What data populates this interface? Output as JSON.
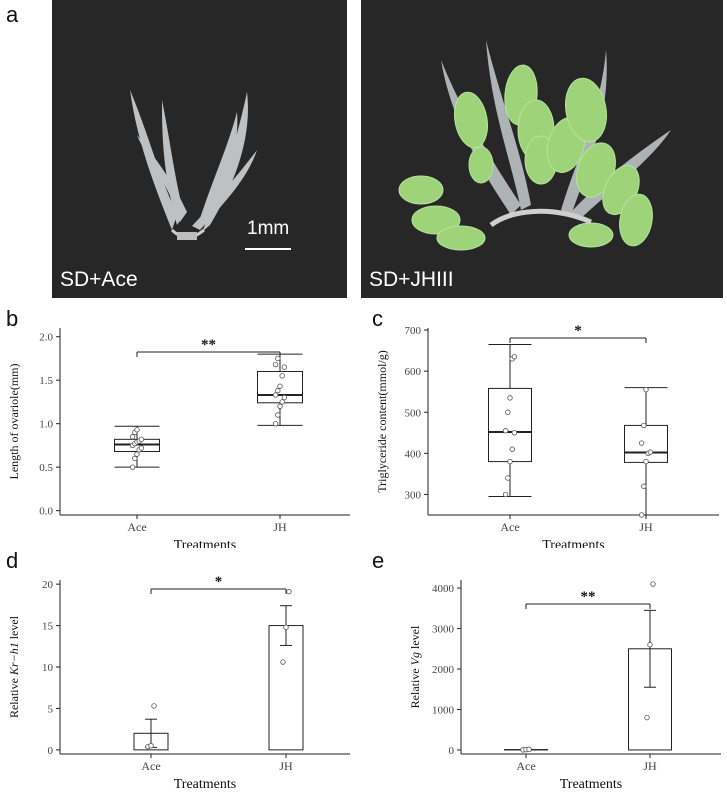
{
  "figure": {
    "panel_letters": [
      "a",
      "b",
      "c",
      "d",
      "e"
    ],
    "photos": [
      {
        "label": "SD+Ace"
      },
      {
        "label": "SD+JHIII"
      }
    ],
    "scale_bar_label": "1mm"
  },
  "chart_data": [
    {
      "panel": "b",
      "type": "box",
      "categories": [
        "Ace",
        "JH"
      ],
      "ylabel": "Length of ovariole(mm)",
      "xlabel": "Treatments",
      "ylim": [
        -0.05,
        2.1
      ],
      "yticks": [
        "0.0",
        "0.5",
        "1.0",
        "1.5",
        "2.0"
      ],
      "ytick_values": [
        0.0,
        0.5,
        1.0,
        1.5,
        2.0
      ],
      "boxes": [
        {
          "category": "Ace",
          "min": 0.5,
          "q1": 0.68,
          "median": 0.76,
          "q3": 0.82,
          "max": 0.97,
          "points": [
            0.5,
            0.6,
            0.65,
            0.7,
            0.72,
            0.75,
            0.77,
            0.79,
            0.8,
            0.82,
            0.85,
            0.9,
            0.93
          ]
        },
        {
          "category": "JH",
          "min": 0.98,
          "q1": 1.24,
          "median": 1.33,
          "q3": 1.6,
          "max": 1.8,
          "points": [
            1.0,
            1.1,
            1.2,
            1.25,
            1.3,
            1.33,
            1.38,
            1.43,
            1.55,
            1.65,
            1.68,
            1.75
          ]
        }
      ],
      "significance": "**"
    },
    {
      "panel": "c",
      "type": "box",
      "categories": [
        "Ace",
        "JH"
      ],
      "ylabel": "Triglyceride content(mmol/g)",
      "xlabel": "Treatments",
      "ylim": [
        250,
        705
      ],
      "yticks": [
        "300",
        "400",
        "500",
        "600",
        "700"
      ],
      "ytick_values": [
        300,
        400,
        500,
        600,
        700
      ],
      "boxes": [
        {
          "category": "Ace",
          "min": 295,
          "q1": 380,
          "median": 452,
          "q3": 558,
          "max": 665,
          "points": [
            300,
            340,
            380,
            410,
            450,
            455,
            500,
            535,
            630,
            635
          ]
        },
        {
          "category": "JH",
          "min": 250,
          "q1": 378,
          "median": 402,
          "q3": 468,
          "max": 560,
          "points": [
            250,
            320,
            380,
            400,
            403,
            425,
            468,
            555
          ]
        }
      ],
      "significance": "*"
    },
    {
      "panel": "d",
      "type": "bar",
      "categories": [
        "Ace",
        "JH"
      ],
      "ylabel": "Relative Kr−h1 level",
      "ylabel_prefix": "Relative ",
      "ylabel_italic": "Kr−h1",
      "ylabel_suffix": " level",
      "xlabel": "Treatments",
      "ylim": [
        -0.5,
        20.5
      ],
      "yticks": [
        "0",
        "5",
        "10",
        "15",
        "20"
      ],
      "ytick_values": [
        0,
        5,
        10,
        15,
        20
      ],
      "values": [
        2.0,
        15.0
      ],
      "error": [
        1.7,
        2.4
      ],
      "points": [
        [
          0.4,
          0.5,
          5.3
        ],
        [
          10.6,
          14.8,
          19.1
        ]
      ],
      "significance": "*"
    },
    {
      "panel": "e",
      "type": "bar",
      "categories": [
        "Ace",
        "JH"
      ],
      "ylabel": "Relative Vg level",
      "ylabel_prefix": "Relative ",
      "ylabel_italic": "Vg",
      "ylabel_suffix": " level",
      "xlabel": "Treatments",
      "ylim": [
        -100,
        4200
      ],
      "yticks": [
        "0",
        "1000",
        "2000",
        "3000",
        "4000"
      ],
      "ytick_values": [
        0,
        1000,
        2000,
        3000,
        4000
      ],
      "values": [
        10,
        2500
      ],
      "error": [
        5,
        950
      ],
      "points": [
        [
          2,
          8,
          15
        ],
        [
          800,
          2600,
          4100
        ]
      ],
      "significance": "**"
    }
  ]
}
